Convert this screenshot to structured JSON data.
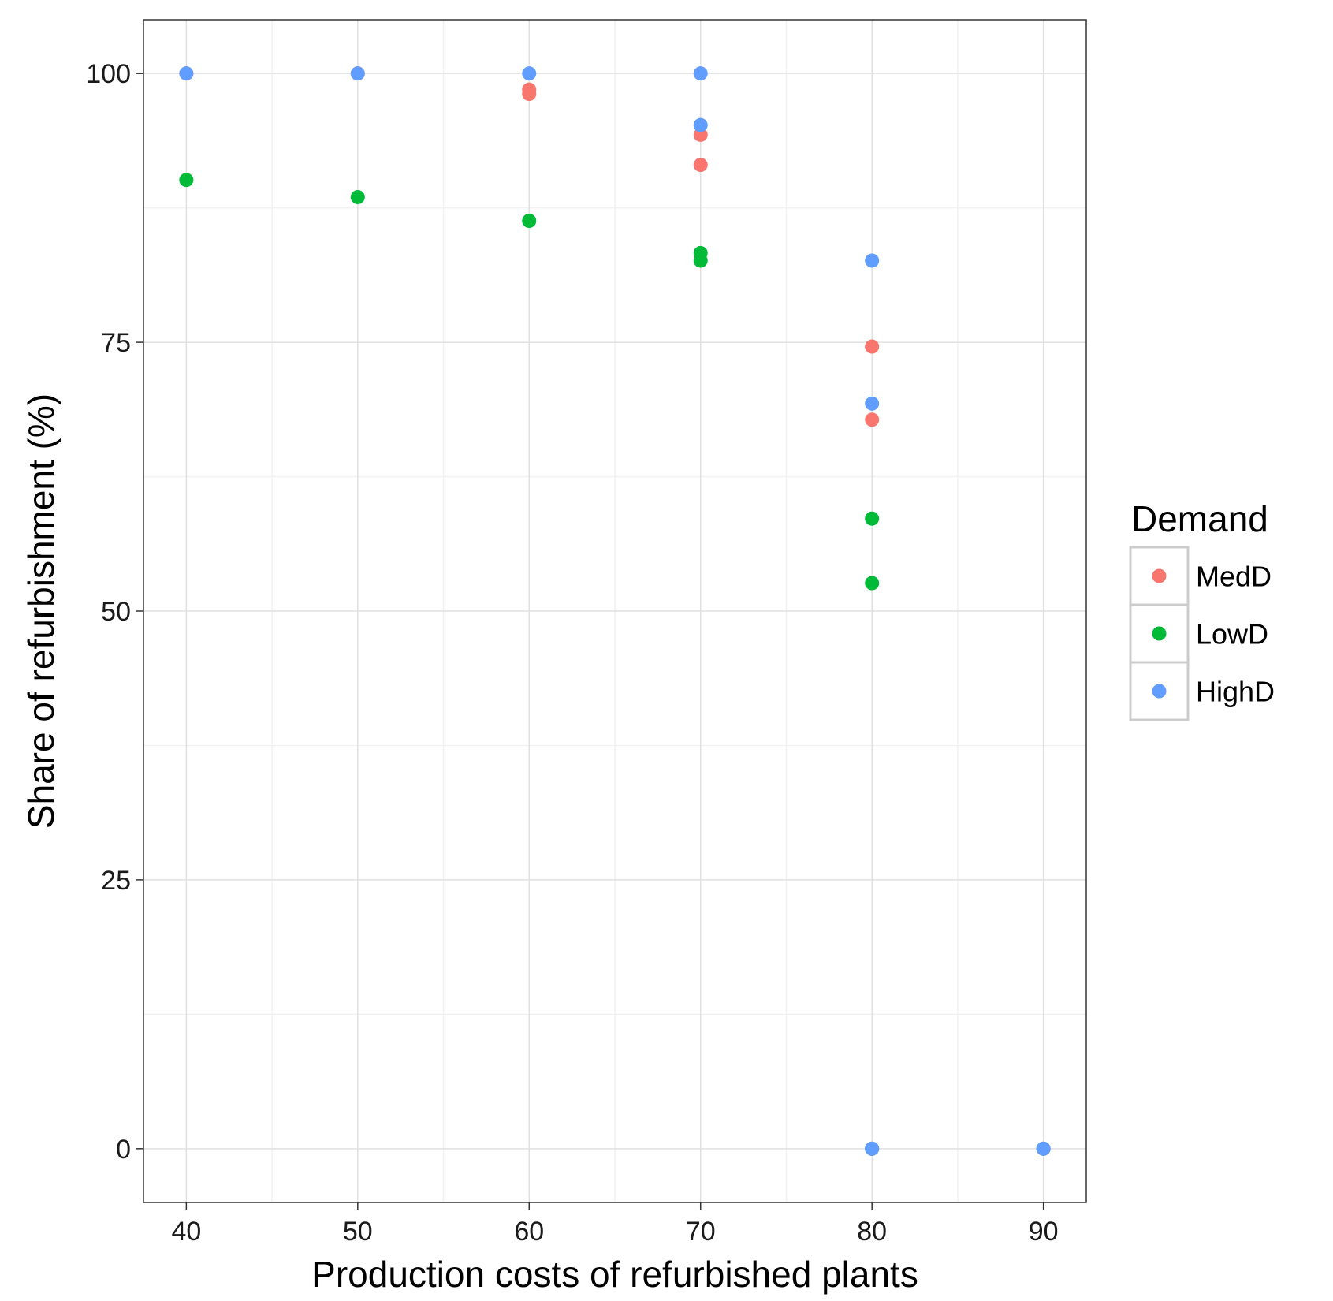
{
  "chart_data": {
    "type": "scatter",
    "title": "",
    "xlabel": "Production costs of refurbished plants",
    "ylabel": "Share of refurbishment (%)",
    "xlim": [
      37.5,
      92.5
    ],
    "ylim": [
      -5,
      105
    ],
    "x_ticks": [
      40,
      50,
      60,
      70,
      80,
      90
    ],
    "x_minor_ticks": [
      45,
      55,
      65,
      75,
      85
    ],
    "y_ticks": [
      0,
      25,
      50,
      75,
      100
    ],
    "y_minor_ticks": [
      12.5,
      37.5,
      62.5,
      87.5
    ],
    "grid": true,
    "legend_title": "Demand",
    "legend_position": "right",
    "series": [
      {
        "name": "MedD",
        "color": "#F8766D",
        "points": [
          {
            "x": 40,
            "y": 100
          },
          {
            "x": 50,
            "y": 100
          },
          {
            "x": 60,
            "y": 98.5
          },
          {
            "x": 60,
            "y": 98.1
          },
          {
            "x": 70,
            "y": 94.3
          },
          {
            "x": 70,
            "y": 91.5
          },
          {
            "x": 80,
            "y": 74.6
          },
          {
            "x": 80,
            "y": 67.8
          },
          {
            "x": 80,
            "y": 0
          },
          {
            "x": 90,
            "y": 0
          }
        ]
      },
      {
        "name": "LowD",
        "color": "#00BA38",
        "points": [
          {
            "x": 40,
            "y": 90.1
          },
          {
            "x": 50,
            "y": 88.5
          },
          {
            "x": 60,
            "y": 86.3
          },
          {
            "x": 70,
            "y": 83.3
          },
          {
            "x": 70,
            "y": 82.6
          },
          {
            "x": 80,
            "y": 58.6
          },
          {
            "x": 80,
            "y": 52.6
          },
          {
            "x": 80,
            "y": 0
          },
          {
            "x": 90,
            "y": 0
          }
        ]
      },
      {
        "name": "HighD",
        "color": "#619CFF",
        "points": [
          {
            "x": 40,
            "y": 100
          },
          {
            "x": 50,
            "y": 100
          },
          {
            "x": 60,
            "y": 100
          },
          {
            "x": 70,
            "y": 100
          },
          {
            "x": 70,
            "y": 95.2
          },
          {
            "x": 80,
            "y": 82.6
          },
          {
            "x": 80,
            "y": 69.3
          },
          {
            "x": 80,
            "y": 0
          },
          {
            "x": 90,
            "y": 0
          }
        ]
      }
    ]
  }
}
